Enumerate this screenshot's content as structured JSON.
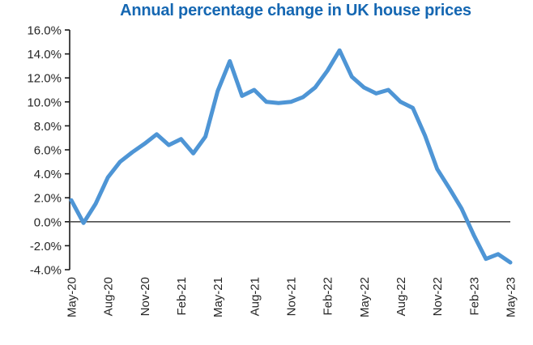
{
  "title": "Annual percentage change in UK house prices",
  "colors": {
    "title": "#1567B2",
    "line": "#4E95D5",
    "axis": "#1a1a1a",
    "tick_text": "#262626",
    "zero_line": "#4d4d4d",
    "background": "#ffffff"
  },
  "chart_data": {
    "type": "line",
    "title": "Annual percentage change in UK house prices",
    "xlabel": "",
    "ylabel": "",
    "ylim": [
      -4,
      16
    ],
    "y_tick_step_pct": 2,
    "grid": "none (single horizontal rule at 0.0% only)",
    "legend": "none",
    "x_label_rotation_deg": 90,
    "y_ticks": [
      "16.0%",
      "14.0%",
      "12.0%",
      "10.0%",
      "8.0%",
      "6.0%",
      "4.0%",
      "2.0%",
      "0.0%",
      "-2.0%",
      "-4.0%"
    ],
    "y_tick_values": [
      16,
      14,
      12,
      10,
      8,
      6,
      4,
      2,
      0,
      -2,
      -4
    ],
    "x_tick_labels": [
      "May-20",
      "Aug-20",
      "Nov-20",
      "Feb-21",
      "May-21",
      "Aug-21",
      "Nov-21",
      "Feb-22",
      "May-22",
      "Aug-22",
      "Nov-22",
      "Feb-23",
      "May-23"
    ],
    "x_tick_every_n_months": 3,
    "x": [
      "May-20",
      "Jun-20",
      "Jul-20",
      "Aug-20",
      "Sep-20",
      "Oct-20",
      "Nov-20",
      "Dec-20",
      "Jan-21",
      "Feb-21",
      "Mar-21",
      "Apr-21",
      "May-21",
      "Jun-21",
      "Jul-21",
      "Aug-21",
      "Sep-21",
      "Oct-21",
      "Nov-21",
      "Dec-21",
      "Jan-22",
      "Feb-22",
      "Mar-22",
      "Apr-22",
      "May-22",
      "Jun-22",
      "Jul-22",
      "Aug-22",
      "Sep-22",
      "Oct-22",
      "Nov-22",
      "Dec-22",
      "Jan-23",
      "Feb-23",
      "Mar-23",
      "Apr-23",
      "May-23"
    ],
    "values": [
      1.8,
      -0.1,
      1.5,
      3.7,
      5.0,
      5.8,
      6.5,
      7.3,
      6.4,
      6.9,
      5.7,
      7.1,
      10.9,
      13.4,
      10.5,
      11.0,
      10.0,
      9.9,
      10.0,
      10.4,
      11.2,
      12.6,
      14.3,
      12.1,
      11.2,
      10.7,
      11.0,
      10.0,
      9.5,
      7.2,
      4.4,
      2.8,
      1.1,
      -1.1,
      -3.1,
      -2.7,
      -3.4
    ]
  }
}
